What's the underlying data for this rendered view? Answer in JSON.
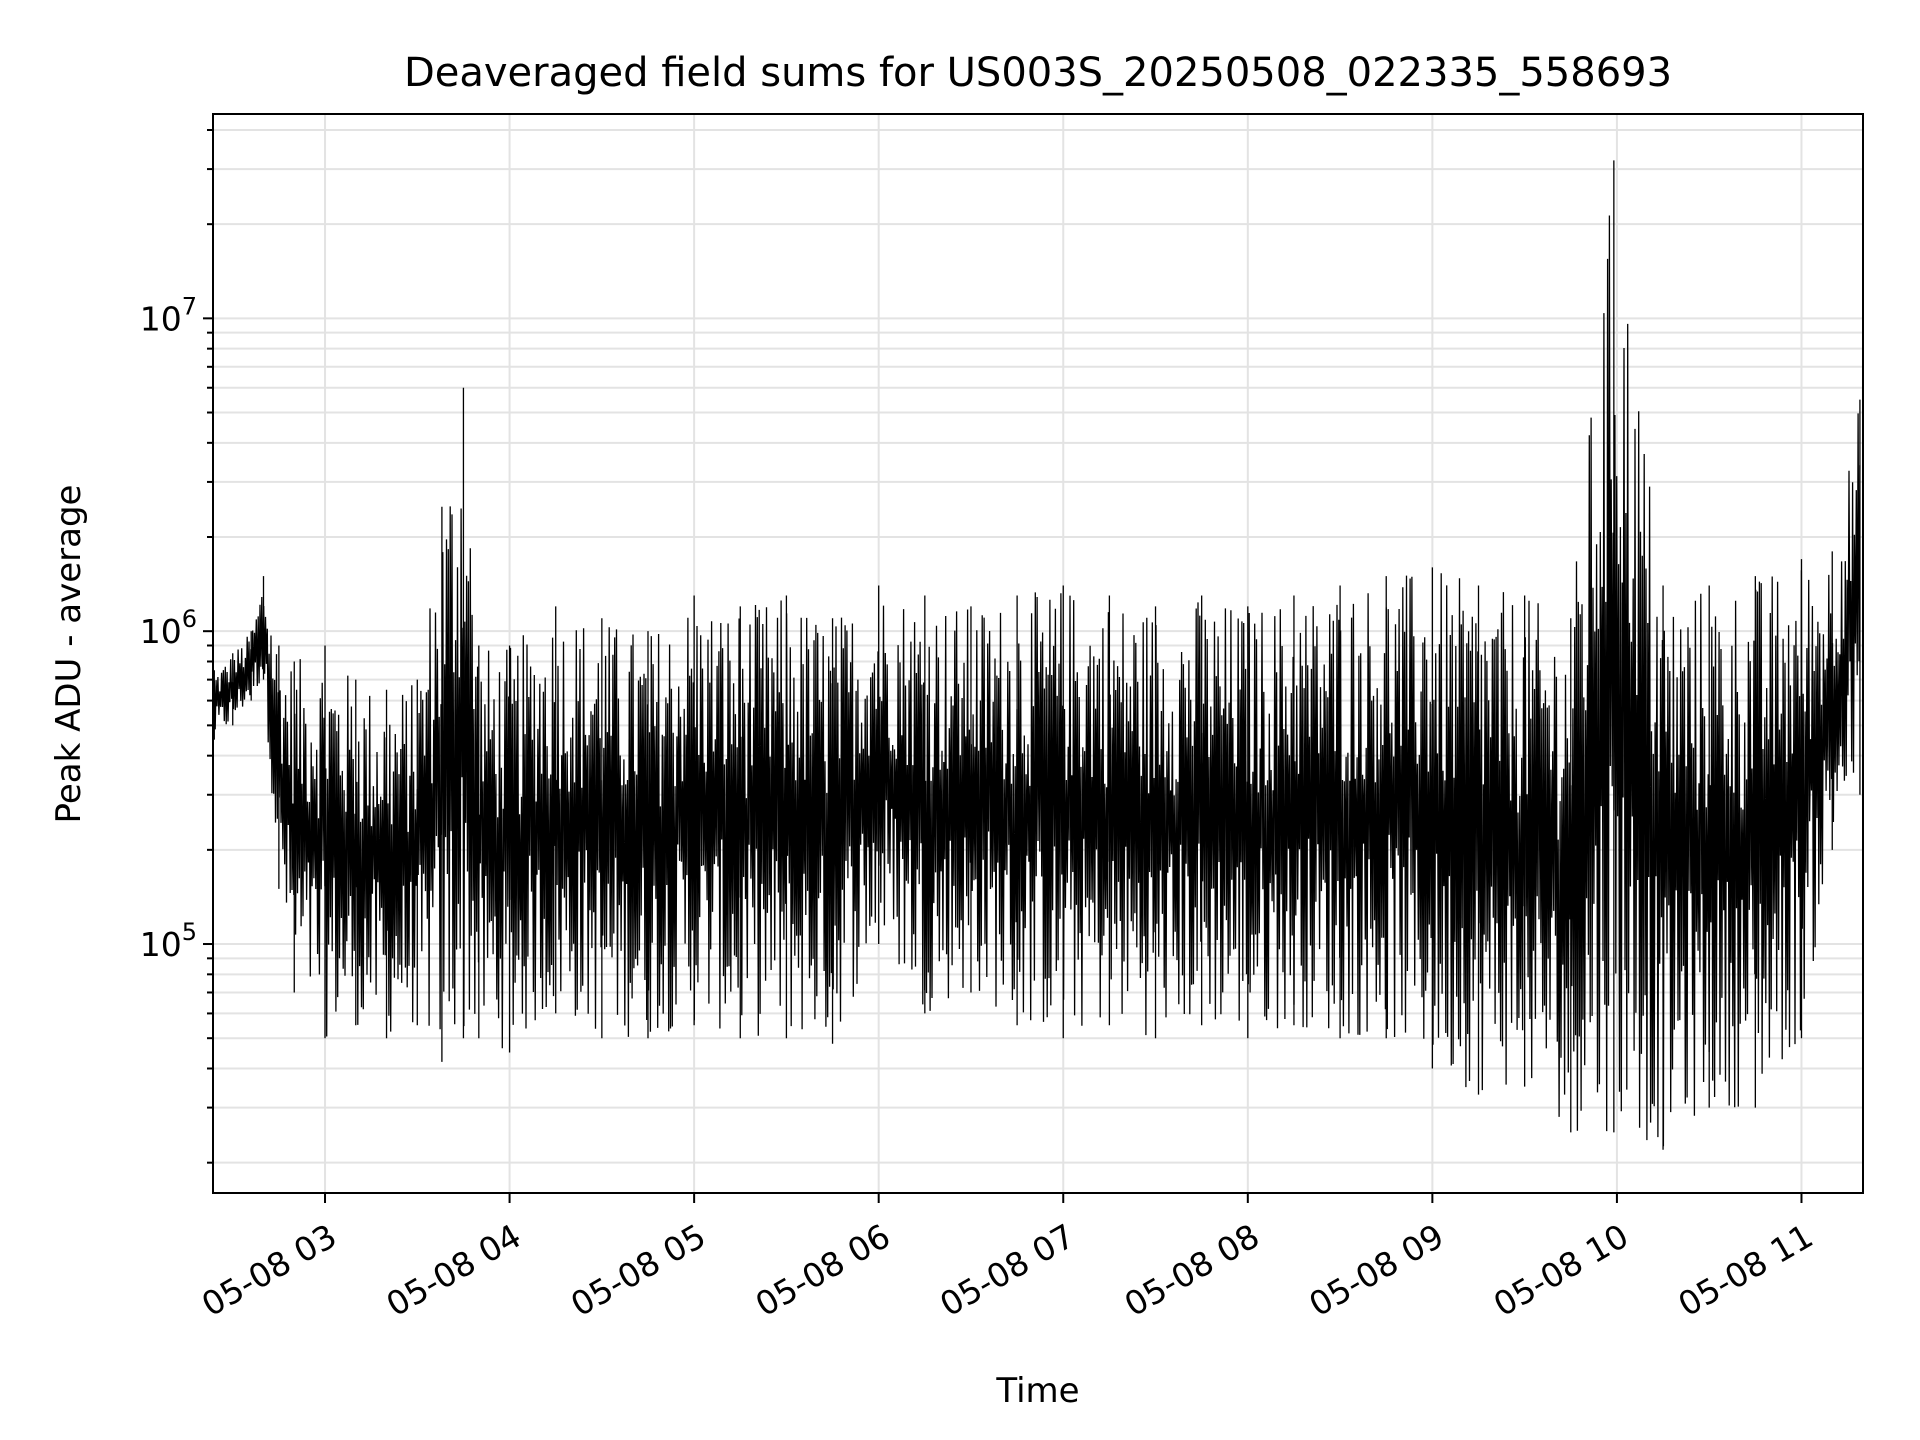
{
  "chart_data": {
    "type": "line",
    "title": "Deaveraged field sums for US003S_20250508_022335_558693",
    "xlabel": "Time",
    "ylabel": "Peak ADU - average",
    "xscale": "time",
    "yscale": "log",
    "xlim": [
      "2025-05-08 02:23:35",
      "2025-05-08 11:20:00"
    ],
    "ylim": [
      16000,
      45000000
    ],
    "grid": true,
    "line_color": "#000000",
    "x_ticks": [
      "05-08 03",
      "05-08 04",
      "05-08 05",
      "05-08 06",
      "05-08 07",
      "05-08 08",
      "05-08 09",
      "05-08 10",
      "05-08 11"
    ],
    "x_tick_times": [
      "2025-05-08 03:00",
      "2025-05-08 04:00",
      "2025-05-08 05:00",
      "2025-05-08 06:00",
      "2025-05-08 07:00",
      "2025-05-08 08:00",
      "2025-05-08 09:00",
      "2025-05-08 10:00",
      "2025-05-08 11:00"
    ],
    "y_ticks": [
      {
        "value": 100000,
        "base": "10",
        "exp": "5"
      },
      {
        "value": 1000000,
        "base": "10",
        "exp": "6"
      },
      {
        "value": 10000000,
        "base": "10",
        "exp": "7"
      }
    ],
    "envelope_note_free": true,
    "x": [
      "2025-05-08 02:24",
      "2025-05-08 02:30",
      "2025-05-08 02:36",
      "2025-05-08 02:40",
      "2025-05-08 02:45",
      "2025-05-08 02:50",
      "2025-05-08 03:00",
      "2025-05-08 03:10",
      "2025-05-08 03:20",
      "2025-05-08 03:30",
      "2025-05-08 03:38",
      "2025-05-08 03:45",
      "2025-05-08 03:50",
      "2025-05-08 04:00",
      "2025-05-08 04:15",
      "2025-05-08 04:30",
      "2025-05-08 04:45",
      "2025-05-08 05:00",
      "2025-05-08 05:15",
      "2025-05-08 05:30",
      "2025-05-08 05:45",
      "2025-05-08 06:00",
      "2025-05-08 06:15",
      "2025-05-08 06:30",
      "2025-05-08 06:45",
      "2025-05-08 07:00",
      "2025-05-08 07:15",
      "2025-05-08 07:30",
      "2025-05-08 07:45",
      "2025-05-08 08:00",
      "2025-05-08 08:15",
      "2025-05-08 08:30",
      "2025-05-08 08:45",
      "2025-05-08 09:00",
      "2025-05-08 09:15",
      "2025-05-08 09:30",
      "2025-05-08 09:45",
      "2025-05-08 09:59",
      "2025-05-08 10:15",
      "2025-05-08 10:30",
      "2025-05-08 10:45",
      "2025-05-08 11:00",
      "2025-05-08 11:10",
      "2025-05-08 11:19"
    ],
    "y_high": [
      750000,
      850000,
      1000000,
      1500000,
      900000,
      800000,
      900000,
      700000,
      650000,
      700000,
      2500000,
      6000000,
      900000,
      900000,
      1200000,
      1100000,
      1000000,
      1300000,
      1200000,
      1300000,
      1100000,
      1400000,
      1300000,
      1200000,
      1300000,
      1400000,
      1300000,
      1200000,
      1300000,
      1200000,
      1300000,
      1400000,
      1500000,
      1600000,
      1400000,
      1300000,
      1100000,
      32000000,
      1400000,
      1400000,
      1500000,
      1700000,
      1800000,
      5500000
    ],
    "y_low": [
      450000,
      500000,
      600000,
      700000,
      150000,
      70000,
      50000,
      55000,
      50000,
      55000,
      42000,
      50000,
      50000,
      45000,
      60000,
      50000,
      50000,
      55000,
      50000,
      50000,
      48000,
      100000,
      60000,
      70000,
      55000,
      50000,
      55000,
      50000,
      55000,
      50000,
      55000,
      50000,
      50000,
      40000,
      33000,
      35000,
      25000,
      25000,
      22000,
      30000,
      30000,
      50000,
      200000,
      300000
    ]
  }
}
